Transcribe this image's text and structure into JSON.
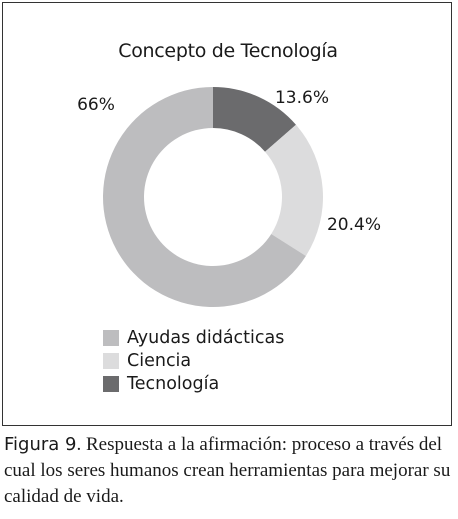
{
  "chart_data": {
    "type": "pie",
    "style": "donut",
    "title": "Concepto de Tecnología",
    "slices": [
      {
        "label": "Tecnología",
        "value": 13.6,
        "display": "13.6%",
        "color": "#6b6b6d"
      },
      {
        "label": "Ciencia",
        "value": 20.4,
        "display": "20.4%",
        "color": "#dcdcdd"
      },
      {
        "label": "Ayudas didácticas",
        "value": 66,
        "display": "66%",
        "color": "#bdbdbf"
      }
    ],
    "legend": [
      {
        "label": "Ayudas didácticas",
        "color": "#bdbdbf"
      },
      {
        "label": "Ciencia",
        "color": "#dcdcdd"
      },
      {
        "label": "Tecnología",
        "color": "#6b6b6d"
      }
    ],
    "legend_position": "bottom-left"
  },
  "caption": {
    "label": "Figura 9",
    "text": ". Respuesta a la afirmación: proceso a través del cual los seres humanos crean herramientas para mejorar su calidad de vida."
  }
}
